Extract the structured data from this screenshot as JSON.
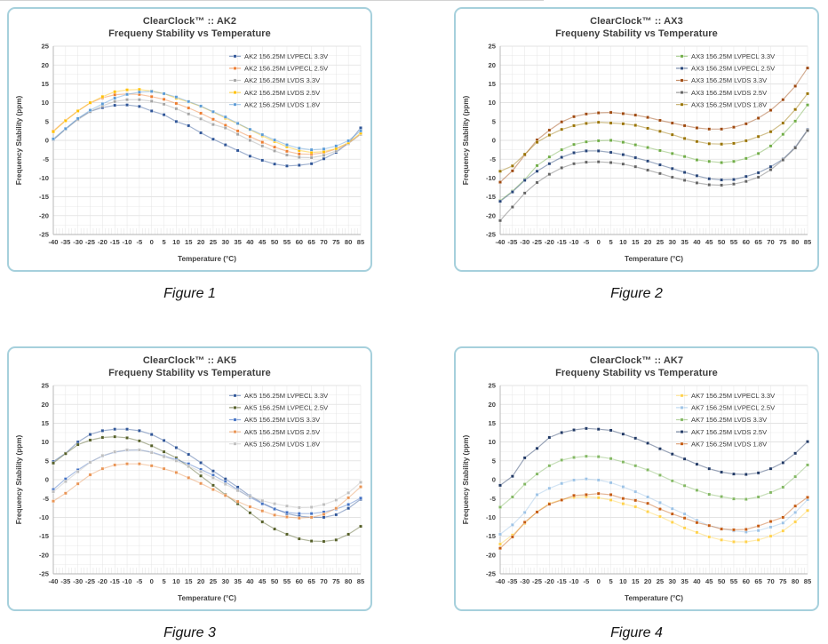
{
  "chart_data": [
    {
      "type": "line",
      "caption": "Figure 1",
      "title": "ClearClock™ :: AK2",
      "subtitle": "Frequeny Stability vs Temperature",
      "xlabel": "Temperature (°C)",
      "ylabel": "Frequency Stability (ppm)",
      "ylim": [
        -25,
        25
      ],
      "y_major": 5,
      "y_minor": 2.5,
      "grid": true,
      "legend_position": "top-right",
      "x": [
        -40,
        -35,
        -30,
        -25,
        -20,
        -15,
        -10,
        -5,
        0,
        5,
        10,
        15,
        20,
        25,
        30,
        35,
        40,
        45,
        50,
        55,
        60,
        65,
        70,
        75,
        80,
        85
      ],
      "series": [
        {
          "name": "AK2 156.25M LVPECL 3.3V",
          "color": "#2F5597",
          "values": [
            0.1,
            3.0,
            5.7,
            7.7,
            8.7,
            9.3,
            9.4,
            9.0,
            7.8,
            6.8,
            5.0,
            3.9,
            2.0,
            0.3,
            -1.2,
            -2.7,
            -4.2,
            -5.3,
            -6.3,
            -6.8,
            -6.6,
            -6.2,
            -4.9,
            -3.2,
            -0.7,
            3.3
          ]
        },
        {
          "name": "AK2 156.25M LVPECL 2.5V",
          "color": "#ED7D31",
          "values": [
            2.5,
            5.3,
            7.8,
            9.9,
            11.3,
            12.1,
            12.3,
            12.2,
            11.6,
            10.9,
            9.8,
            8.6,
            7.2,
            5.6,
            4.0,
            2.5,
            1.0,
            -0.5,
            -1.8,
            -2.9,
            -3.6,
            -3.7,
            -3.3,
            -2.3,
            -0.8,
            1.7
          ]
        },
        {
          "name": "AK2 156.25M LVDS 3.3V",
          "color": "#A5A5A5",
          "values": [
            0.2,
            2.9,
            5.5,
            7.6,
            9.2,
            10.3,
            10.8,
            10.8,
            10.4,
            9.6,
            8.4,
            7.0,
            5.7,
            4.2,
            3.3,
            1.6,
            0.0,
            -1.5,
            -2.8,
            -3.9,
            -4.5,
            -4.6,
            -4.0,
            -2.8,
            -0.9,
            1.6
          ]
        },
        {
          "name": "AK2 156.25M LVDS 2.5V",
          "color": "#FFC000",
          "values": [
            2.3,
            5.2,
            7.8,
            10.0,
            11.6,
            12.9,
            13.4,
            13.5,
            13.1,
            12.4,
            11.2,
            10.2,
            9.0,
            7.5,
            5.9,
            4.4,
            2.8,
            1.2,
            -0.3,
            -1.7,
            -2.7,
            -3.2,
            -3.0,
            -2.2,
            -0.6,
            1.9
          ]
        },
        {
          "name": "AK2 156.25M LVDS 1.8V",
          "color": "#5B9BD5",
          "values": [
            0.4,
            3.1,
            5.8,
            8.0,
            9.7,
            11.2,
            12.2,
            12.8,
            13.0,
            12.4,
            11.5,
            10.3,
            9.1,
            7.6,
            6.2,
            4.5,
            2.9,
            1.5,
            0.1,
            -1.2,
            -2.1,
            -2.5,
            -2.3,
            -1.5,
            -0.1,
            2.5
          ]
        }
      ]
    },
    {
      "type": "line",
      "caption": "Figure 2",
      "title": "ClearClock™ :: AX3",
      "subtitle": "Frequeny Stability vs Temperature",
      "xlabel": "Temperature (°C)",
      "ylabel": "Frequency Stability (ppm)",
      "ylim": [
        -25,
        25
      ],
      "y_major": 5,
      "y_minor": 2.5,
      "grid": true,
      "legend_position": "top-right",
      "x": [
        -40,
        -35,
        -30,
        -25,
        -20,
        -15,
        -10,
        -5,
        0,
        5,
        10,
        15,
        20,
        25,
        30,
        35,
        40,
        45,
        50,
        55,
        60,
        65,
        70,
        75,
        80,
        85
      ],
      "series": [
        {
          "name": "AX3 156.25M LVPECL 3.3V",
          "color": "#70AD47",
          "values": [
            -16.0,
            -13.5,
            -10.4,
            -6.7,
            -4.4,
            -2.5,
            -1.1,
            -0.4,
            -0.1,
            0.0,
            -0.5,
            -1.2,
            -1.9,
            -2.7,
            -3.5,
            -4.3,
            -5.2,
            -5.6,
            -5.9,
            -5.6,
            -4.8,
            -3.5,
            -1.5,
            1.6,
            5.1,
            9.4
          ]
        },
        {
          "name": "AX3 156.25M LVPECL 2.5V",
          "color": "#264478",
          "values": [
            -16.2,
            -13.7,
            -10.6,
            -8.2,
            -6.2,
            -4.5,
            -3.3,
            -2.8,
            -2.8,
            -3.2,
            -3.8,
            -4.6,
            -5.5,
            -6.5,
            -7.5,
            -8.5,
            -9.4,
            -10.2,
            -10.5,
            -10.4,
            -9.6,
            -8.6,
            -7.0,
            -5.0,
            -1.8,
            2.8
          ]
        },
        {
          "name": "AX3 156.25M LVDS 3.3V",
          "color": "#9E480E",
          "values": [
            -11.1,
            -8.1,
            -3.9,
            0.1,
            2.7,
            4.9,
            6.3,
            7.0,
            7.3,
            7.4,
            7.1,
            6.7,
            6.1,
            5.3,
            4.6,
            3.9,
            3.3,
            3.0,
            3.0,
            3.5,
            4.4,
            5.9,
            8.0,
            10.8,
            14.4,
            19.2
          ]
        },
        {
          "name": "AX3 156.25M LVDS 2.5V",
          "color": "#636363",
          "values": [
            -21.3,
            -17.7,
            -14.0,
            -11.2,
            -9.0,
            -7.3,
            -6.2,
            -5.8,
            -5.7,
            -5.9,
            -6.3,
            -7.0,
            -7.9,
            -8.8,
            -9.8,
            -10.6,
            -11.3,
            -11.8,
            -11.9,
            -11.6,
            -10.9,
            -9.8,
            -7.8,
            -5.2,
            -2.0,
            2.6
          ]
        },
        {
          "name": "AX3 156.25M LVDS 1.8V",
          "color": "#997300",
          "values": [
            -8.2,
            -6.8,
            -3.7,
            -0.5,
            1.4,
            2.9,
            3.9,
            4.5,
            4.8,
            4.6,
            4.4,
            4.0,
            3.2,
            2.4,
            1.5,
            0.5,
            -0.3,
            -0.9,
            -1.0,
            -0.8,
            -0.1,
            1.0,
            2.3,
            4.6,
            8.2,
            12.4
          ]
        }
      ]
    },
    {
      "type": "line",
      "caption": "Figure 3",
      "title": "ClearClock™ :: AK5",
      "subtitle": "Frequeny Stability vs Temperature",
      "xlabel": "Temperature (°C)",
      "ylabel": "Frequency Stability (ppm)",
      "ylim": [
        -25,
        25
      ],
      "y_major": 5,
      "y_minor": 2.5,
      "grid": true,
      "legend_position": "top-right",
      "x": [
        -40,
        -35,
        -30,
        -25,
        -20,
        -15,
        -10,
        -5,
        0,
        5,
        10,
        15,
        20,
        25,
        30,
        35,
        40,
        45,
        50,
        55,
        60,
        65,
        70,
        75,
        80,
        85
      ],
      "series": [
        {
          "name": "AK5 156.25M LVPECL 3.3V",
          "color": "#2F5597",
          "values": [
            4.8,
            7.0,
            10.0,
            12.0,
            13.0,
            13.4,
            13.4,
            13.0,
            12.0,
            10.4,
            8.5,
            6.7,
            4.5,
            2.3,
            0.2,
            -2.0,
            -4.3,
            -6.2,
            -7.7,
            -9.0,
            -9.7,
            -10.0,
            -10.0,
            -9.3,
            -7.6,
            -5.2
          ]
        },
        {
          "name": "AK5 156.25M LVPECL 2.5V",
          "color": "#555F28",
          "values": [
            4.4,
            6.9,
            9.3,
            10.5,
            11.2,
            11.4,
            11.1,
            10.3,
            9.0,
            7.4,
            5.8,
            3.5,
            1.0,
            -1.5,
            -4.0,
            -6.4,
            -8.8,
            -11.2,
            -13.1,
            -14.5,
            -15.7,
            -16.3,
            -16.4,
            -16.0,
            -14.5,
            -12.4
          ]
        },
        {
          "name": "AK5 156.25M LVDS 3.3V",
          "color": "#4472C4",
          "values": [
            -2.6,
            0.2,
            2.6,
            4.7,
            6.3,
            7.3,
            7.8,
            7.9,
            7.3,
            6.3,
            5.3,
            4.2,
            2.7,
            1.2,
            -0.6,
            -2.7,
            -4.7,
            -6.4,
            -7.8,
            -8.7,
            -9.0,
            -9.0,
            -8.6,
            -7.8,
            -6.6,
            -4.9
          ]
        },
        {
          "name": "AK5 156.25M LVDS 2.5V",
          "color": "#E99455",
          "values": [
            -5.7,
            -3.6,
            -1.1,
            1.3,
            2.9,
            3.9,
            4.2,
            4.2,
            3.7,
            2.9,
            1.9,
            0.5,
            -1.0,
            -2.6,
            -4.2,
            -5.8,
            -7.2,
            -8.3,
            -9.4,
            -9.9,
            -10.2,
            -10.0,
            -9.2,
            -7.6,
            -4.8,
            -1.9
          ]
        },
        {
          "name": "AK5 156.25M LVDS 1.8V",
          "color": "#BFBFBF",
          "values": [
            -3.2,
            -0.5,
            2.1,
            4.6,
            6.4,
            7.4,
            7.9,
            7.9,
            7.2,
            6.1,
            5.0,
            3.6,
            2.1,
            0.5,
            -1.2,
            -2.9,
            -4.5,
            -5.6,
            -6.4,
            -7.0,
            -7.4,
            -7.3,
            -6.6,
            -5.4,
            -3.5,
            -0.7
          ]
        }
      ]
    },
    {
      "type": "line",
      "caption": "Figure 4",
      "title": "ClearClock™ :: AK7",
      "subtitle": "Frequeny Stability vs Temperature",
      "xlabel": "Temperature (°C)",
      "ylabel": "Frequency Stability (ppm)",
      "ylim": [
        -25,
        25
      ],
      "y_major": 5,
      "y_minor": 2.5,
      "grid": true,
      "legend_position": "top-right",
      "x": [
        -40,
        -35,
        -30,
        -25,
        -20,
        -15,
        -10,
        -5,
        0,
        5,
        10,
        15,
        20,
        25,
        30,
        35,
        40,
        45,
        50,
        55,
        60,
        65,
        70,
        75,
        80,
        85
      ],
      "series": [
        {
          "name": "AK7 156.25M LVPECL 3.3V",
          "color": "#FFD24C",
          "values": [
            -17.1,
            -14.7,
            -11.6,
            -8.5,
            -6.3,
            -5.3,
            -4.7,
            -4.5,
            -4.8,
            -5.4,
            -6.4,
            -7.2,
            -8.5,
            -9.8,
            -11.3,
            -12.8,
            -14.0,
            -15.2,
            -16.0,
            -16.5,
            -16.5,
            -16.0,
            -15.0,
            -13.6,
            -11.2,
            -8.2
          ]
        },
        {
          "name": "AK7 156.25M LVPECL 2.5V",
          "color": "#9DC3E6",
          "values": [
            -14.5,
            -12.0,
            -8.7,
            -4.0,
            -2.3,
            -1.0,
            -0.1,
            0.2,
            -0.1,
            -0.8,
            -1.9,
            -3.2,
            -4.6,
            -6.1,
            -7.7,
            -9.1,
            -10.8,
            -12.2,
            -13.0,
            -13.6,
            -13.9,
            -13.5,
            -12.6,
            -11.5,
            -8.7,
            -5.3
          ]
        },
        {
          "name": "AK7 156.25M LVDS 3.3V",
          "color": "#83B863",
          "values": [
            -7.3,
            -4.6,
            -1.2,
            1.5,
            3.7,
            5.2,
            5.9,
            6.2,
            6.1,
            5.6,
            4.7,
            3.7,
            2.6,
            1.2,
            -0.3,
            -1.6,
            -2.8,
            -3.9,
            -4.5,
            -5.1,
            -5.2,
            -4.6,
            -3.4,
            -2.0,
            0.8,
            3.9
          ]
        },
        {
          "name": "AK7 156.25M LVDS 2.5V",
          "color": "#203864",
          "values": [
            -1.5,
            0.9,
            5.8,
            8.3,
            11.2,
            12.5,
            13.2,
            13.6,
            13.4,
            13.1,
            12.1,
            11.0,
            9.7,
            8.2,
            6.8,
            5.5,
            4.1,
            2.9,
            2.0,
            1.5,
            1.4,
            1.8,
            2.9,
            4.5,
            7.0,
            10.1
          ]
        },
        {
          "name": "AK7 156.25M LVDS 1.8V",
          "color": "#C55A11",
          "values": [
            -18.2,
            -15.2,
            -11.3,
            -8.6,
            -6.5,
            -5.4,
            -4.2,
            -4.0,
            -3.7,
            -4.0,
            -5.0,
            -5.5,
            -6.3,
            -7.8,
            -9.1,
            -10.2,
            -11.4,
            -12.2,
            -13.1,
            -13.3,
            -13.2,
            -12.3,
            -11.1,
            -10.0,
            -7.0,
            -4.7
          ]
        }
      ]
    }
  ]
}
